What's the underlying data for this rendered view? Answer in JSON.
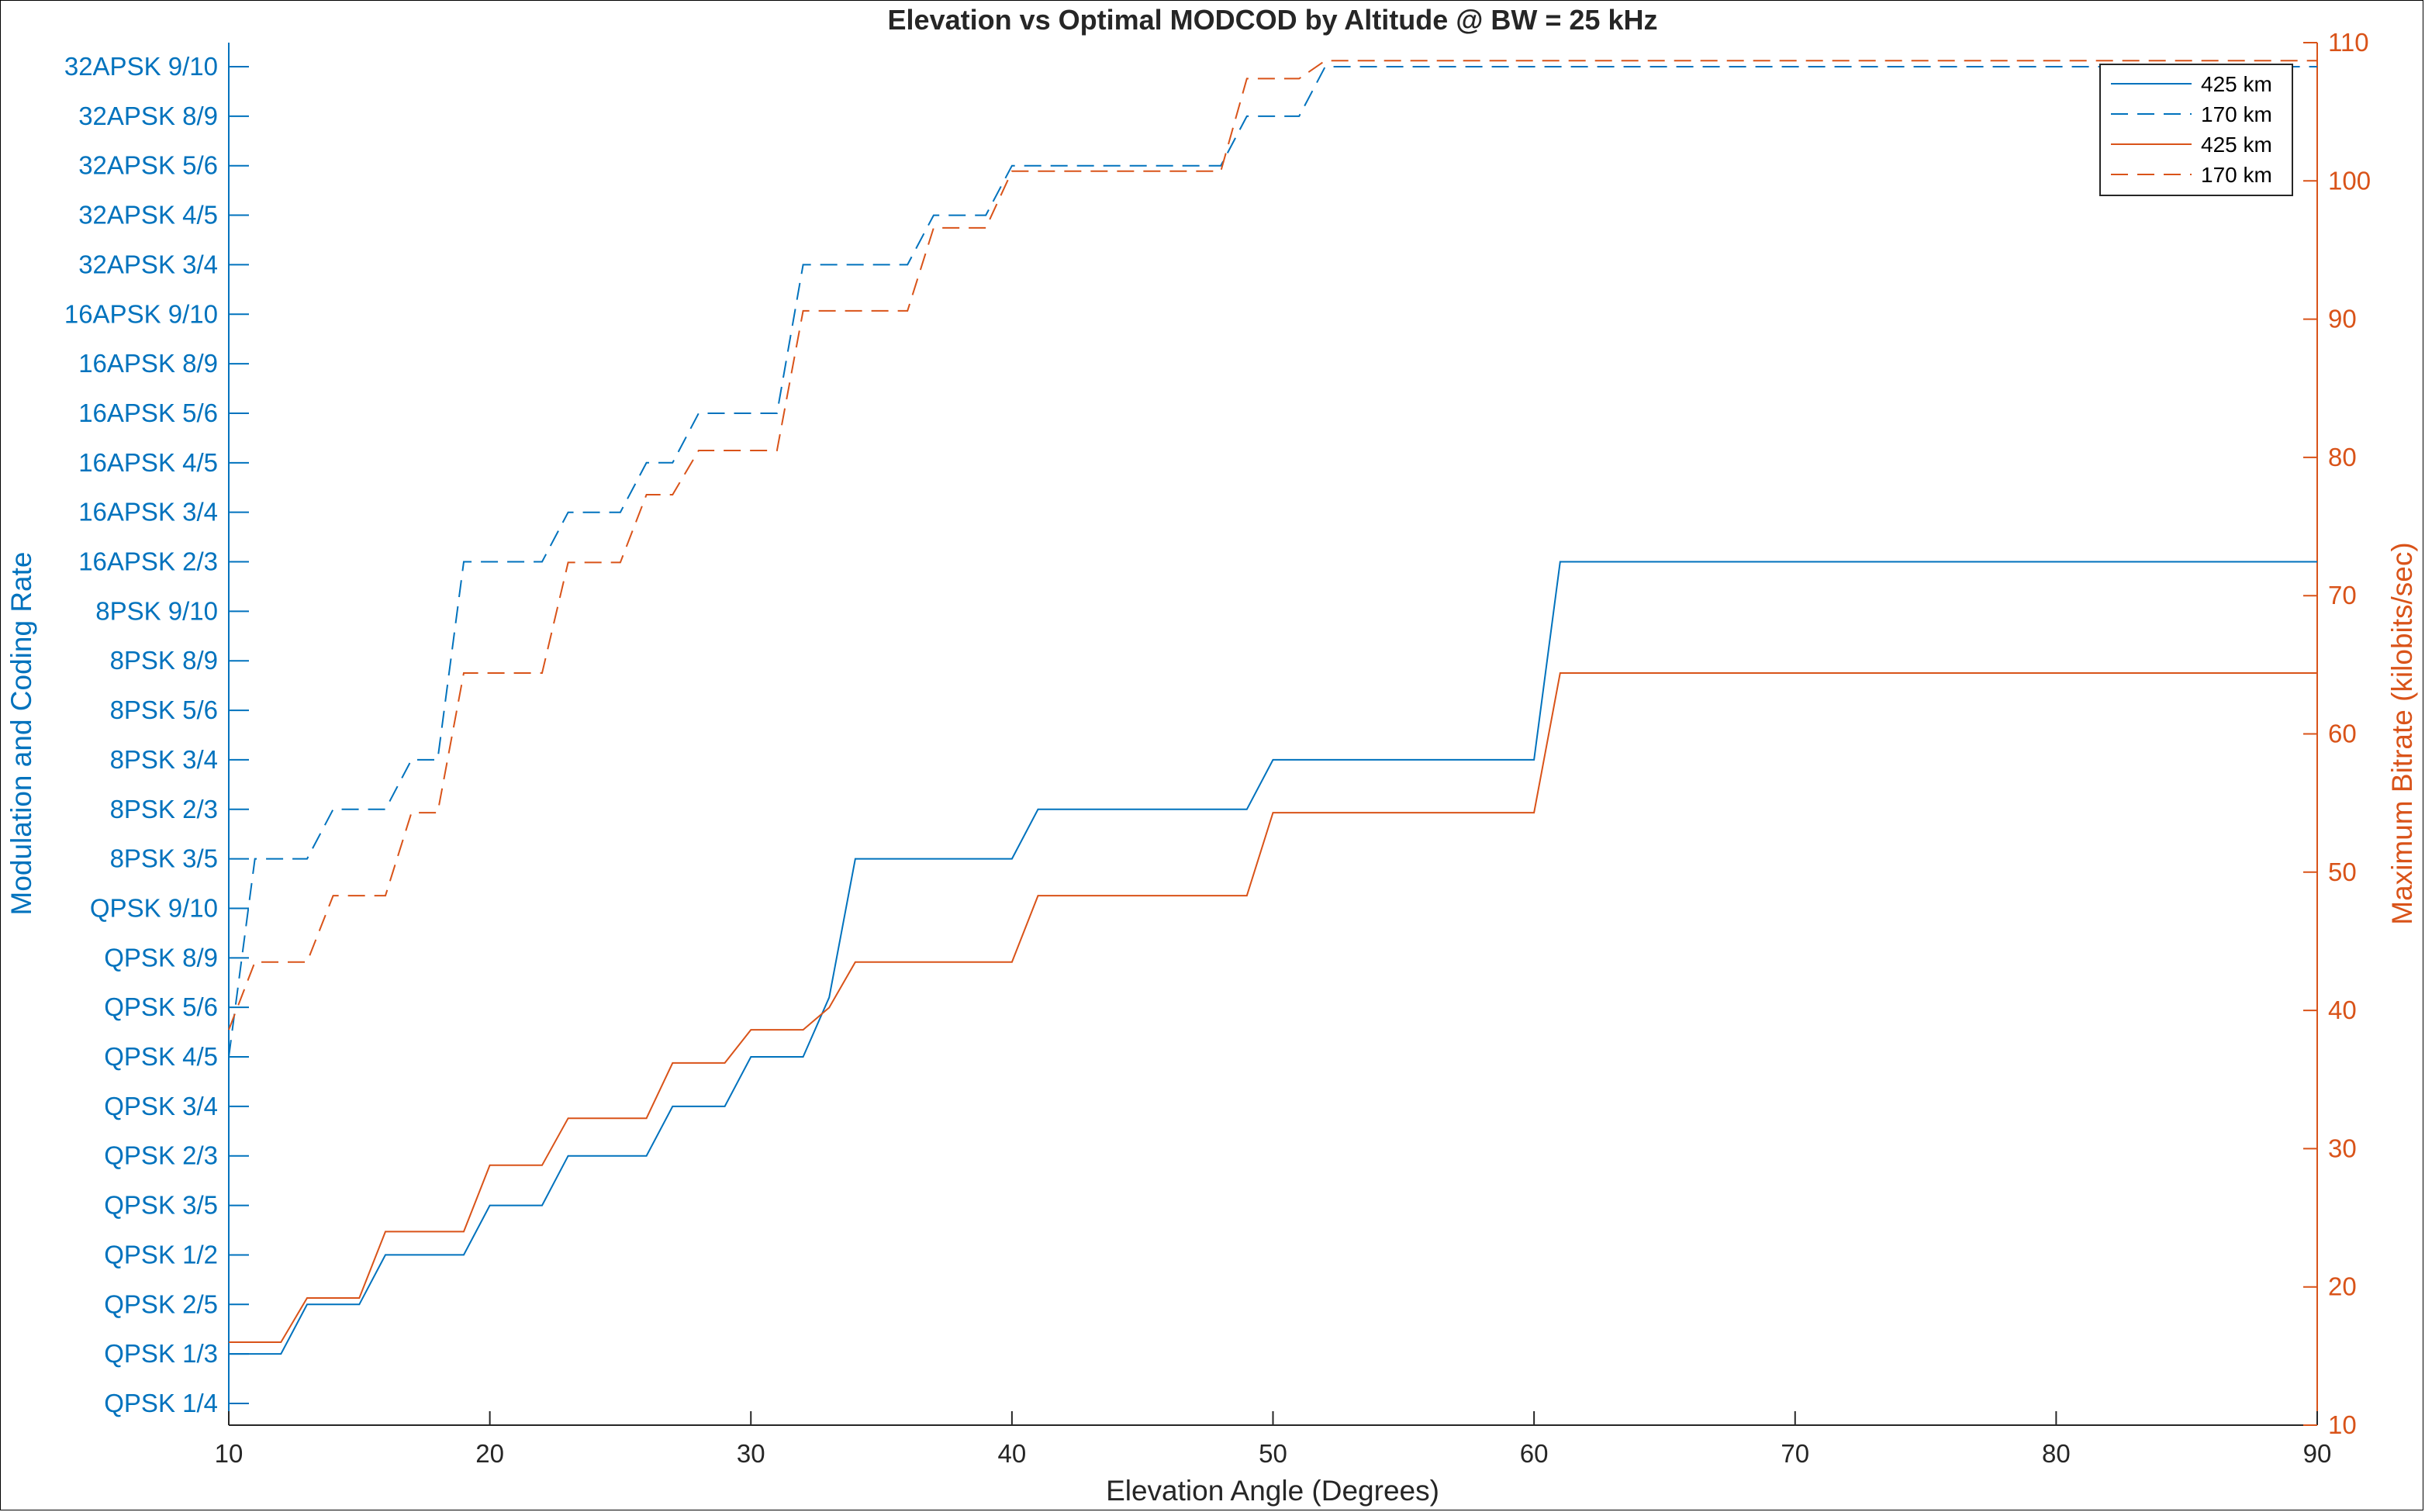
{
  "chart_data": {
    "type": "line",
    "title": "Elevation vs Optimal MODCOD by Altitude @ BW = 25 kHz",
    "xlabel": "Elevation Angle (Degrees)",
    "ylabel_left": "Modulation and Coding Rate",
    "ylabel_right": "Maximum Bitrate (kilobits/sec)",
    "xlim": [
      10,
      90
    ],
    "x_ticks": [
      10,
      20,
      30,
      40,
      50,
      60,
      70,
      80,
      90
    ],
    "left_categories": [
      "QPSK 1/4",
      "QPSK 1/3",
      "QPSK 2/5",
      "QPSK 1/2",
      "QPSK 3/5",
      "QPSK 2/3",
      "QPSK 3/4",
      "QPSK 4/5",
      "QPSK 5/6",
      "QPSK 8/9",
      "QPSK 9/10",
      "8PSK 3/5",
      "8PSK 2/3",
      "8PSK 3/4",
      "8PSK 5/6",
      "8PSK 8/9",
      "8PSK 9/10",
      "16APSK 2/3",
      "16APSK 3/4",
      "16APSK 4/5",
      "16APSK 5/6",
      "16APSK 8/9",
      "16APSK 9/10",
      "32APSK 3/4",
      "32APSK 4/5",
      "32APSK 5/6",
      "32APSK 8/9",
      "32APSK 9/10"
    ],
    "right_ylim": [
      10,
      110
    ],
    "right_ticks": [
      10,
      20,
      30,
      40,
      50,
      60,
      70,
      80,
      90,
      100,
      110
    ],
    "grid": false,
    "legend_position": "top-right",
    "colors": {
      "left_axis": "#0072BD",
      "right_axis": "#D95319"
    },
    "series": [
      {
        "name": "425 km",
        "axis": "left",
        "style": "solid",
        "points": [
          [
            10,
            1
          ],
          [
            12,
            1
          ],
          [
            13,
            2
          ],
          [
            15,
            2
          ],
          [
            16,
            3
          ],
          [
            19,
            3
          ],
          [
            20,
            4
          ],
          [
            22,
            4
          ],
          [
            23,
            5
          ],
          [
            26,
            5
          ],
          [
            27,
            6
          ],
          [
            29,
            6
          ],
          [
            30,
            7
          ],
          [
            32,
            7
          ],
          [
            33,
            8.2
          ],
          [
            34,
            11
          ],
          [
            40,
            11
          ],
          [
            41,
            12
          ],
          [
            49,
            12
          ],
          [
            50,
            13
          ],
          [
            60,
            13
          ],
          [
            61,
            17
          ],
          [
            90,
            17
          ]
        ]
      },
      {
        "name": "170 km",
        "axis": "left",
        "style": "dashed",
        "points": [
          [
            10,
            7
          ],
          [
            11,
            11
          ],
          [
            13,
            11
          ],
          [
            14,
            12
          ],
          [
            16,
            12
          ],
          [
            17,
            13
          ],
          [
            18,
            13
          ],
          [
            19,
            17
          ],
          [
            22,
            17
          ],
          [
            23,
            18
          ],
          [
            25,
            18
          ],
          [
            26,
            19
          ],
          [
            27,
            19
          ],
          [
            28,
            20
          ],
          [
            31,
            20
          ],
          [
            32,
            23
          ],
          [
            36,
            23
          ],
          [
            37,
            24
          ],
          [
            39,
            24
          ],
          [
            40,
            25
          ],
          [
            48,
            25
          ],
          [
            49,
            26
          ],
          [
            51,
            26
          ],
          [
            52,
            27
          ],
          [
            90,
            27
          ]
        ]
      },
      {
        "name": "425 km",
        "axis": "right",
        "style": "solid",
        "points": [
          [
            10,
            16
          ],
          [
            12,
            16
          ],
          [
            13,
            19.2
          ],
          [
            15,
            19.2
          ],
          [
            16,
            24
          ],
          [
            19,
            24
          ],
          [
            20,
            28.8
          ],
          [
            22,
            28.8
          ],
          [
            23,
            32.2
          ],
          [
            26,
            32.2
          ],
          [
            27,
            36.2
          ],
          [
            29,
            36.2
          ],
          [
            30,
            38.6
          ],
          [
            32,
            38.6
          ],
          [
            33,
            40.2
          ],
          [
            34,
            43.5
          ],
          [
            40,
            43.5
          ],
          [
            41,
            48.3
          ],
          [
            49,
            48.3
          ],
          [
            50,
            54.3
          ],
          [
            60,
            54.3
          ],
          [
            61,
            64.4
          ],
          [
            90,
            64.4
          ]
        ]
      },
      {
        "name": "170 km",
        "axis": "right",
        "style": "dashed",
        "points": [
          [
            10,
            38.6
          ],
          [
            11,
            43.5
          ],
          [
            13,
            43.5
          ],
          [
            14,
            48.3
          ],
          [
            16,
            48.3
          ],
          [
            17,
            54.3
          ],
          [
            18,
            54.3
          ],
          [
            19,
            64.4
          ],
          [
            22,
            64.4
          ],
          [
            23,
            72.4
          ],
          [
            25,
            72.4
          ],
          [
            26,
            77.3
          ],
          [
            27,
            77.3
          ],
          [
            28,
            80.5
          ],
          [
            31,
            80.5
          ],
          [
            32,
            90.6
          ],
          [
            36,
            90.6
          ],
          [
            37,
            96.6
          ],
          [
            39,
            96.6
          ],
          [
            40,
            100.7
          ],
          [
            48,
            100.7
          ],
          [
            49,
            107.4
          ],
          [
            51,
            107.4
          ],
          [
            52,
            108.7
          ],
          [
            90,
            108.7
          ]
        ]
      }
    ]
  }
}
